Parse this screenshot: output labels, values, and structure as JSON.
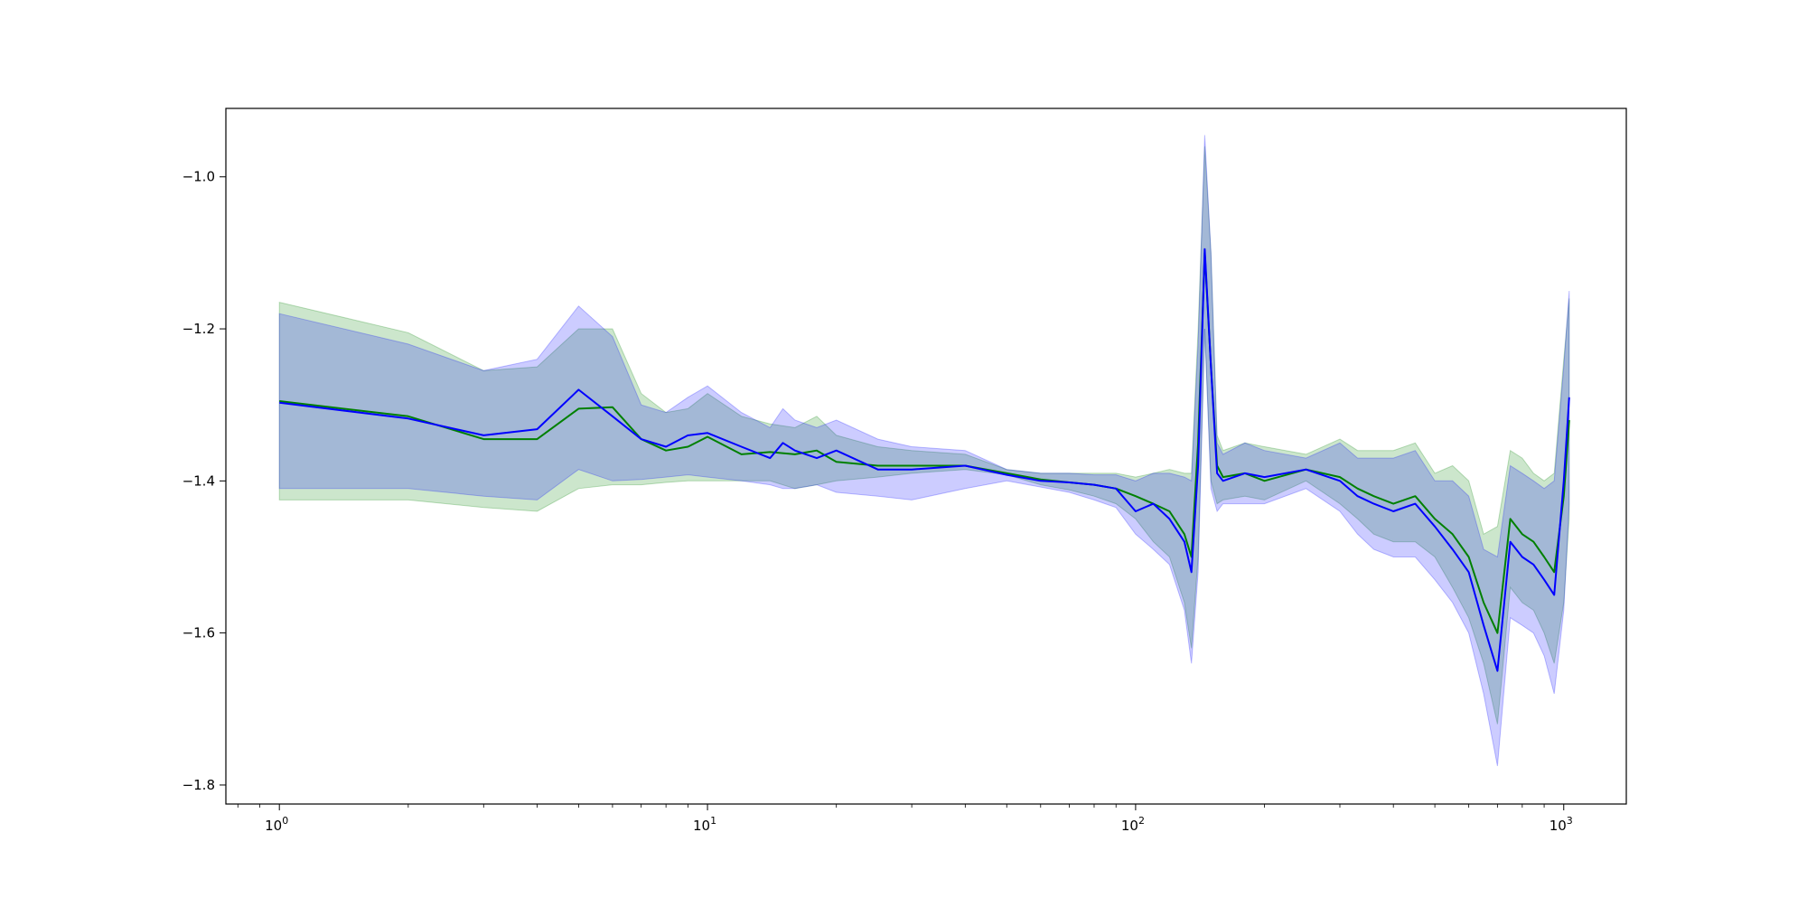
{
  "chart_data": {
    "type": "line",
    "title": "",
    "xlabel": "",
    "ylabel": "",
    "xscale": "log",
    "xlim": [
      0.75,
      1400
    ],
    "ylim": [
      -1.825,
      -0.91
    ],
    "grid": false,
    "legend": "none",
    "x_ticks": [
      {
        "value": 1,
        "base": "10",
        "exp": "0"
      },
      {
        "value": 10,
        "base": "10",
        "exp": "1"
      },
      {
        "value": 100,
        "base": "10",
        "exp": "2"
      },
      {
        "value": 1000,
        "base": "10",
        "exp": "3"
      }
    ],
    "y_ticks": [
      {
        "value": -1.8,
        "label": "−1.8"
      },
      {
        "value": -1.6,
        "label": "−1.6"
      },
      {
        "value": -1.4,
        "label": "−1.4"
      },
      {
        "value": -1.2,
        "label": "−1.2"
      },
      {
        "value": -1.0,
        "label": "−1.0"
      }
    ],
    "series": [
      {
        "color": "#008000",
        "band_color": "#008000",
        "x": [
          1,
          2,
          3,
          4,
          5,
          6,
          7,
          8,
          9,
          10,
          12,
          14,
          16,
          18,
          20,
          25,
          30,
          40,
          50,
          60,
          70,
          80,
          90,
          100,
          110,
          120,
          130,
          135,
          140,
          145,
          150,
          155,
          160,
          180,
          200,
          250,
          300,
          330,
          360,
          400,
          450,
          500,
          550,
          600,
          650,
          700,
          750,
          800,
          850,
          900,
          950,
          1000,
          1030
        ],
        "y": [
          -1.295,
          -1.315,
          -1.345,
          -1.345,
          -1.305,
          -1.303,
          -1.345,
          -1.36,
          -1.355,
          -1.342,
          -1.365,
          -1.362,
          -1.365,
          -1.36,
          -1.375,
          -1.38,
          -1.38,
          -1.38,
          -1.39,
          -1.398,
          -1.402,
          -1.405,
          -1.41,
          -1.42,
          -1.43,
          -1.44,
          -1.47,
          -1.5,
          -1.35,
          -1.1,
          -1.25,
          -1.38,
          -1.395,
          -1.39,
          -1.4,
          -1.385,
          -1.395,
          -1.41,
          -1.42,
          -1.43,
          -1.42,
          -1.45,
          -1.47,
          -1.5,
          -1.56,
          -1.6,
          -1.45,
          -1.47,
          -1.48,
          -1.5,
          -1.52,
          -1.42,
          -1.32
        ],
        "lower": [
          -1.425,
          -1.425,
          -1.435,
          -1.44,
          -1.41,
          -1.405,
          -1.405,
          -1.402,
          -1.4,
          -1.4,
          -1.4,
          -1.4,
          -1.41,
          -1.405,
          -1.4,
          -1.395,
          -1.39,
          -1.385,
          -1.392,
          -1.405,
          -1.412,
          -1.42,
          -1.43,
          -1.45,
          -1.48,
          -1.5,
          -1.56,
          -1.62,
          -1.5,
          -1.2,
          -1.4,
          -1.43,
          -1.425,
          -1.42,
          -1.425,
          -1.4,
          -1.43,
          -1.45,
          -1.47,
          -1.48,
          -1.48,
          -1.5,
          -1.54,
          -1.58,
          -1.64,
          -1.72,
          -1.54,
          -1.56,
          -1.57,
          -1.6,
          -1.64,
          -1.56,
          -1.45
        ],
        "upper": [
          -1.165,
          -1.205,
          -1.255,
          -1.25,
          -1.2,
          -1.2,
          -1.285,
          -1.31,
          -1.305,
          -1.285,
          -1.315,
          -1.325,
          -1.33,
          -1.315,
          -1.34,
          -1.355,
          -1.36,
          -1.365,
          -1.385,
          -1.39,
          -1.39,
          -1.39,
          -1.39,
          -1.395,
          -1.39,
          -1.385,
          -1.39,
          -1.39,
          -1.2,
          -0.96,
          -1.1,
          -1.34,
          -1.36,
          -1.35,
          -1.355,
          -1.365,
          -1.345,
          -1.36,
          -1.36,
          -1.36,
          -1.35,
          -1.39,
          -1.38,
          -1.4,
          -1.47,
          -1.46,
          -1.36,
          -1.37,
          -1.39,
          -1.4,
          -1.39,
          -1.24,
          -1.16
        ]
      },
      {
        "color": "#0000ff",
        "band_color": "#0000ff",
        "x": [
          1,
          2,
          3,
          4,
          5,
          6,
          7,
          8,
          9,
          10,
          12,
          14,
          15,
          16,
          18,
          20,
          25,
          30,
          40,
          50,
          60,
          70,
          80,
          90,
          100,
          110,
          120,
          130,
          135,
          140,
          145,
          150,
          155,
          160,
          180,
          200,
          250,
          300,
          330,
          360,
          400,
          450,
          500,
          550,
          600,
          650,
          700,
          750,
          800,
          850,
          900,
          950,
          1000,
          1030
        ],
        "y": [
          -1.297,
          -1.318,
          -1.34,
          -1.332,
          -1.28,
          -1.315,
          -1.345,
          -1.355,
          -1.34,
          -1.337,
          -1.355,
          -1.37,
          -1.35,
          -1.36,
          -1.37,
          -1.36,
          -1.385,
          -1.385,
          -1.38,
          -1.392,
          -1.4,
          -1.402,
          -1.405,
          -1.41,
          -1.44,
          -1.43,
          -1.45,
          -1.48,
          -1.52,
          -1.38,
          -1.095,
          -1.25,
          -1.39,
          -1.4,
          -1.39,
          -1.395,
          -1.385,
          -1.4,
          -1.42,
          -1.43,
          -1.44,
          -1.43,
          -1.46,
          -1.49,
          -1.52,
          -1.59,
          -1.65,
          -1.48,
          -1.5,
          -1.51,
          -1.53,
          -1.55,
          -1.4,
          -1.29
        ],
        "lower": [
          -1.41,
          -1.41,
          -1.42,
          -1.425,
          -1.385,
          -1.4,
          -1.398,
          -1.395,
          -1.392,
          -1.395,
          -1.4,
          -1.405,
          -1.41,
          -1.41,
          -1.405,
          -1.415,
          -1.42,
          -1.425,
          -1.41,
          -1.4,
          -1.408,
          -1.415,
          -1.425,
          -1.435,
          -1.47,
          -1.49,
          -1.51,
          -1.57,
          -1.64,
          -1.52,
          -1.2,
          -1.41,
          -1.44,
          -1.43,
          -1.43,
          -1.43,
          -1.41,
          -1.44,
          -1.47,
          -1.49,
          -1.5,
          -1.5,
          -1.53,
          -1.56,
          -1.6,
          -1.68,
          -1.775,
          -1.58,
          -1.59,
          -1.6,
          -1.63,
          -1.68,
          -1.57,
          -1.43
        ],
        "upper": [
          -1.18,
          -1.22,
          -1.255,
          -1.24,
          -1.17,
          -1.21,
          -1.3,
          -1.31,
          -1.29,
          -1.275,
          -1.31,
          -1.33,
          -1.305,
          -1.32,
          -1.33,
          -1.32,
          -1.345,
          -1.355,
          -1.36,
          -1.385,
          -1.39,
          -1.39,
          -1.392,
          -1.392,
          -1.4,
          -1.39,
          -1.39,
          -1.395,
          -1.4,
          -1.22,
          -0.945,
          -1.1,
          -1.35,
          -1.365,
          -1.35,
          -1.36,
          -1.37,
          -1.35,
          -1.37,
          -1.37,
          -1.37,
          -1.36,
          -1.4,
          -1.4,
          -1.42,
          -1.49,
          -1.5,
          -1.38,
          -1.39,
          -1.4,
          -1.41,
          -1.4,
          -1.25,
          -1.15
        ]
      }
    ]
  }
}
